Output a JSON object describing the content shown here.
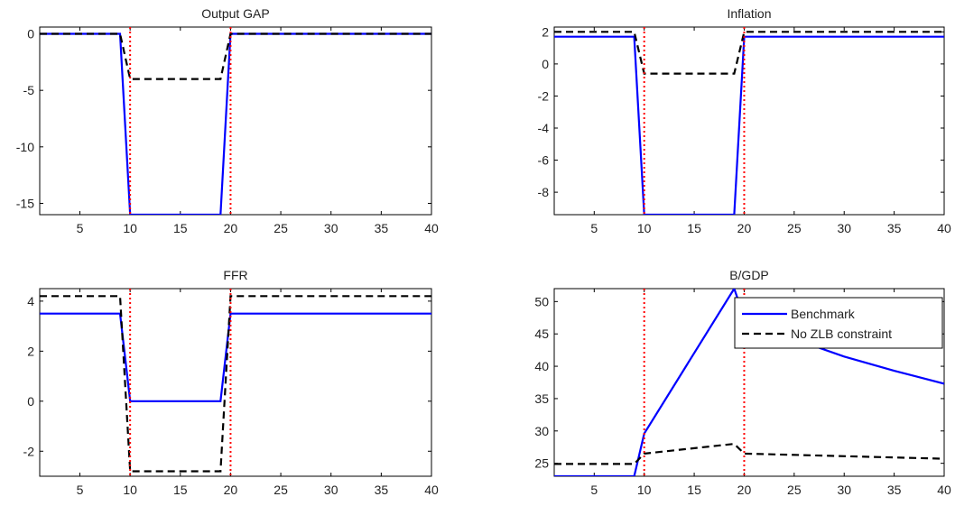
{
  "chart_data": [
    {
      "type": "line",
      "title": "Output GAP",
      "xlim": [
        1,
        40
      ],
      "ylim": [
        -16,
        0.6
      ],
      "xticks": [
        5,
        10,
        15,
        20,
        25,
        30,
        35,
        40
      ],
      "yticks": [
        -15,
        -10,
        -5,
        0
      ],
      "vlines": [
        10,
        20
      ],
      "series": [
        {
          "name": "Benchmark",
          "style": "solid",
          "color": "#0000ff",
          "x": [
            1,
            9,
            10,
            19,
            20,
            40
          ],
          "y": [
            0,
            0,
            -16,
            -16,
            0,
            0
          ]
        },
        {
          "name": "No ZLB constraint",
          "style": "dashed",
          "color": "#000000",
          "x": [
            1,
            9,
            10,
            19,
            20,
            40
          ],
          "y": [
            0,
            0,
            -4,
            -4,
            0,
            0
          ]
        }
      ]
    },
    {
      "type": "line",
      "title": "Inflation",
      "xlim": [
        1,
        40
      ],
      "ylim": [
        -9.4,
        2.3
      ],
      "xticks": [
        5,
        10,
        15,
        20,
        25,
        30,
        35,
        40
      ],
      "yticks": [
        -8,
        -6,
        -4,
        -2,
        0,
        2
      ],
      "vlines": [
        10,
        20
      ],
      "series": [
        {
          "name": "Benchmark",
          "style": "solid",
          "color": "#0000ff",
          "x": [
            1,
            9,
            10,
            19,
            20,
            40
          ],
          "y": [
            1.7,
            1.7,
            -9.4,
            -9.4,
            1.7,
            1.7
          ]
        },
        {
          "name": "No ZLB constraint",
          "style": "dashed",
          "color": "#000000",
          "x": [
            1,
            9,
            10,
            19,
            20,
            40
          ],
          "y": [
            2.0,
            2.0,
            -0.6,
            -0.6,
            2.0,
            2.0
          ]
        }
      ]
    },
    {
      "type": "line",
      "title": "FFR",
      "xlim": [
        1,
        40
      ],
      "ylim": [
        -3.0,
        4.5
      ],
      "xticks": [
        5,
        10,
        15,
        20,
        25,
        30,
        35,
        40
      ],
      "yticks": [
        -2,
        0,
        2,
        4
      ],
      "vlines": [
        10,
        20
      ],
      "series": [
        {
          "name": "Benchmark",
          "style": "solid",
          "color": "#0000ff",
          "x": [
            1,
            9,
            10,
            19,
            20,
            40
          ],
          "y": [
            3.5,
            3.5,
            0,
            0,
            3.5,
            3.5
          ]
        },
        {
          "name": "No ZLB constraint",
          "style": "dashed",
          "color": "#000000",
          "x": [
            1,
            9,
            10,
            19,
            20,
            40
          ],
          "y": [
            4.2,
            4.2,
            -2.8,
            -2.8,
            4.2,
            4.2
          ]
        }
      ]
    },
    {
      "type": "line",
      "title": "B/GDP",
      "xlim": [
        1,
        40
      ],
      "ylim": [
        23,
        52
      ],
      "xticks": [
        5,
        10,
        15,
        20,
        25,
        30,
        35,
        40
      ],
      "yticks": [
        25,
        30,
        35,
        40,
        45,
        50
      ],
      "vlines": [
        10,
        20
      ],
      "legend": "top-right",
      "series": [
        {
          "name": "Benchmark",
          "style": "solid",
          "color": "#0000ff",
          "x": [
            1,
            9,
            10,
            19,
            20,
            25,
            30,
            35,
            40
          ],
          "y": [
            23,
            23,
            29.6,
            52,
            47.5,
            44.2,
            41.5,
            39.3,
            37.3
          ]
        },
        {
          "name": "No ZLB constraint",
          "style": "dashed",
          "color": "#000000",
          "x": [
            1,
            9,
            10,
            19,
            20,
            40
          ],
          "y": [
            24.9,
            24.9,
            26.5,
            28.0,
            26.5,
            25.7
          ]
        }
      ]
    }
  ],
  "colors": {
    "vline": "#ff0000",
    "axis": "#000000"
  }
}
